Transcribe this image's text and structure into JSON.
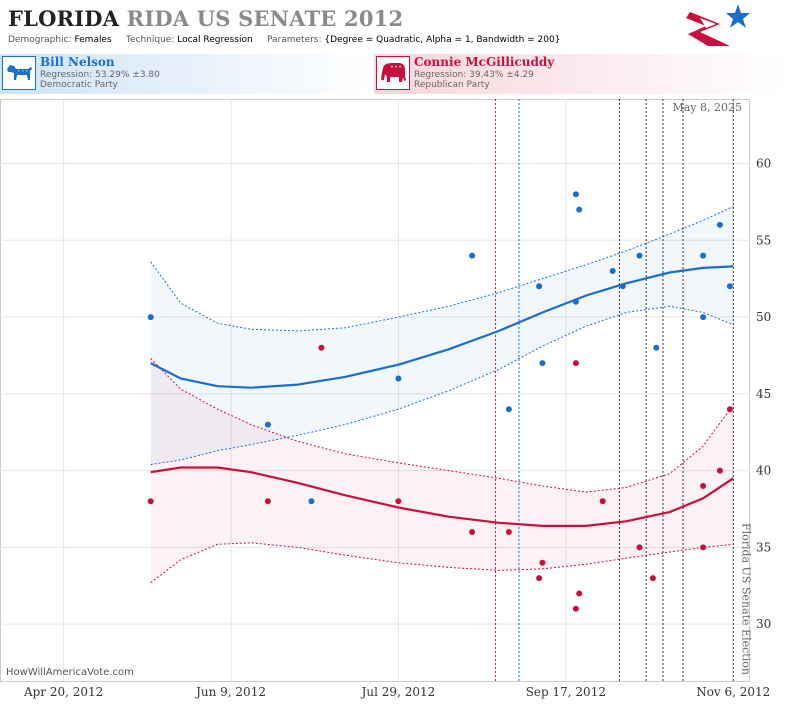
{
  "header": {
    "title_part1": "FLORIDA",
    "title_part2": "RIDA US SENATE 2012",
    "demographic_label": "Demographic:",
    "demographic_value": "Females",
    "technique_label": "Technique:",
    "technique_value": "Local Regression",
    "parameters_label": "Parameters:",
    "parameters_value": "{Degree = Quadratic, Alpha = 1, Bandwidth = 200}",
    "logo_icon": "flag-star-logo-icon"
  },
  "candidates": {
    "dem": {
      "name": "Bill Nelson",
      "regression": "Regression: 53.29% ±3.80",
      "party": "Democratic Party",
      "icon": "donkey-icon",
      "color": "#1a6fcc"
    },
    "rep": {
      "name": "Connie McGillicuddy",
      "regression": "Regression: 39.43% ±4.29",
      "party": "Republican Party",
      "icon": "elephant-icon",
      "color": "#c8103e"
    }
  },
  "chart_data": {
    "type": "scatter",
    "date_label": "May 8, 2025",
    "election_label": "Florida US Senate Election",
    "watermark": "HowWillAmericaVote.com",
    "x_range": [
      "2012-04-01",
      "2012-11-11"
    ],
    "y_range": [
      26.3,
      64.2
    ],
    "x_ticks": [
      {
        "date": "2012-04-20",
        "label": "Apr 20, 2012"
      },
      {
        "date": "2012-06-09",
        "label": "Jun 9, 2012"
      },
      {
        "date": "2012-07-29",
        "label": "Jul 29, 2012"
      },
      {
        "date": "2012-09-17",
        "label": "Sep 17, 2012"
      },
      {
        "date": "2012-11-06",
        "label": "Nov 6, 2012"
      }
    ],
    "y_ticks": [
      30,
      35,
      40,
      45,
      50,
      55,
      60
    ],
    "grid": true,
    "event_lines": [
      {
        "date": "2012-08-27",
        "color": "#c8103e"
      },
      {
        "date": "2012-09-03",
        "color": "#1a6fcc"
      },
      {
        "date": "2012-10-03",
        "color": "#333333"
      },
      {
        "date": "2012-10-11",
        "color": "#333333"
      },
      {
        "date": "2012-10-16",
        "color": "#333333"
      },
      {
        "date": "2012-10-22",
        "color": "#333333"
      },
      {
        "date": "2012-11-06",
        "color": "#333333"
      }
    ],
    "series": [
      {
        "name": "Bill Nelson",
        "color": "#1a6fcc",
        "band_color": "rgba(26,111,204,0.06)",
        "points": [
          [
            "2012-05-16",
            50
          ],
          [
            "2012-06-20",
            43
          ],
          [
            "2012-07-03",
            38
          ],
          [
            "2012-07-29",
            46
          ],
          [
            "2012-08-20",
            54
          ],
          [
            "2012-08-31",
            44
          ],
          [
            "2012-09-09",
            52
          ],
          [
            "2012-09-10",
            47
          ],
          [
            "2012-09-20",
            58
          ],
          [
            "2012-09-21",
            57
          ],
          [
            "2012-09-20",
            51
          ],
          [
            "2012-10-28",
            50
          ],
          [
            "2012-10-01",
            53
          ],
          [
            "2012-10-04",
            52
          ],
          [
            "2012-10-09",
            54
          ],
          [
            "2012-10-14",
            48
          ],
          [
            "2012-10-28",
            54
          ],
          [
            "2012-11-02",
            56
          ],
          [
            "2012-11-05",
            52
          ]
        ],
        "trend": [
          [
            "2012-05-16",
            47.0
          ],
          [
            "2012-05-25",
            46.0
          ],
          [
            "2012-06-05",
            45.5
          ],
          [
            "2012-06-15",
            45.4
          ],
          [
            "2012-06-29",
            45.6
          ],
          [
            "2012-07-13",
            46.1
          ],
          [
            "2012-07-29",
            46.9
          ],
          [
            "2012-08-13",
            47.9
          ],
          [
            "2012-08-28",
            49.1
          ],
          [
            "2012-09-10",
            50.3
          ],
          [
            "2012-09-23",
            51.4
          ],
          [
            "2012-10-05",
            52.2
          ],
          [
            "2012-10-18",
            52.9
          ],
          [
            "2012-10-28",
            53.2
          ],
          [
            "2012-11-06",
            53.3
          ]
        ],
        "upper": [
          [
            "2012-05-16",
            53.6
          ],
          [
            "2012-05-25",
            50.9
          ],
          [
            "2012-06-05",
            49.6
          ],
          [
            "2012-06-15",
            49.2
          ],
          [
            "2012-06-29",
            49.1
          ],
          [
            "2012-07-13",
            49.3
          ],
          [
            "2012-07-29",
            50.0
          ],
          [
            "2012-08-13",
            50.7
          ],
          [
            "2012-08-28",
            51.6
          ],
          [
            "2012-09-10",
            52.5
          ],
          [
            "2012-09-23",
            53.4
          ],
          [
            "2012-10-05",
            54.3
          ],
          [
            "2012-10-18",
            55.4
          ],
          [
            "2012-10-28",
            56.3
          ],
          [
            "2012-11-06",
            57.2
          ]
        ],
        "lower": [
          [
            "2012-05-16",
            40.4
          ],
          [
            "2012-05-25",
            40.7
          ],
          [
            "2012-06-05",
            41.3
          ],
          [
            "2012-06-15",
            41.7
          ],
          [
            "2012-06-29",
            42.3
          ],
          [
            "2012-07-13",
            43.0
          ],
          [
            "2012-07-29",
            44.0
          ],
          [
            "2012-08-13",
            45.2
          ],
          [
            "2012-08-28",
            46.6
          ],
          [
            "2012-09-10",
            48.1
          ],
          [
            "2012-09-23",
            49.4
          ],
          [
            "2012-10-05",
            50.3
          ],
          [
            "2012-10-18",
            50.7
          ],
          [
            "2012-10-28",
            50.3
          ],
          [
            "2012-11-06",
            49.5
          ]
        ]
      },
      {
        "name": "Connie McGillicuddy",
        "color": "#c8103e",
        "band_color": "rgba(200,16,62,0.06)",
        "points": [
          [
            "2012-05-16",
            38
          ],
          [
            "2012-06-20",
            38
          ],
          [
            "2012-07-06",
            48
          ],
          [
            "2012-07-29",
            38
          ],
          [
            "2012-08-20",
            36
          ],
          [
            "2012-08-31",
            36
          ],
          [
            "2012-09-10",
            34
          ],
          [
            "2012-09-09",
            33
          ],
          [
            "2012-09-20",
            47
          ],
          [
            "2012-09-20",
            31
          ],
          [
            "2012-09-21",
            32
          ],
          [
            "2012-09-28",
            38
          ],
          [
            "2012-10-09",
            35
          ],
          [
            "2012-10-13",
            33
          ],
          [
            "2012-10-28",
            35
          ],
          [
            "2012-10-28",
            39
          ],
          [
            "2012-11-02",
            40
          ],
          [
            "2012-11-05",
            44
          ]
        ],
        "trend": [
          [
            "2012-05-16",
            39.9
          ],
          [
            "2012-05-25",
            40.2
          ],
          [
            "2012-06-05",
            40.2
          ],
          [
            "2012-06-15",
            39.9
          ],
          [
            "2012-06-29",
            39.2
          ],
          [
            "2012-07-13",
            38.4
          ],
          [
            "2012-07-29",
            37.6
          ],
          [
            "2012-08-13",
            37.0
          ],
          [
            "2012-08-28",
            36.6
          ],
          [
            "2012-09-10",
            36.4
          ],
          [
            "2012-09-23",
            36.4
          ],
          [
            "2012-10-05",
            36.7
          ],
          [
            "2012-10-18",
            37.3
          ],
          [
            "2012-10-28",
            38.2
          ],
          [
            "2012-11-06",
            39.5
          ]
        ],
        "upper": [
          [
            "2012-05-16",
            47.3
          ],
          [
            "2012-05-25",
            45.3
          ],
          [
            "2012-06-05",
            44.0
          ],
          [
            "2012-06-15",
            43.0
          ],
          [
            "2012-06-29",
            41.9
          ],
          [
            "2012-07-13",
            41.1
          ],
          [
            "2012-07-29",
            40.5
          ],
          [
            "2012-08-13",
            40.0
          ],
          [
            "2012-08-28",
            39.5
          ],
          [
            "2012-09-10",
            39.0
          ],
          [
            "2012-09-23",
            38.6
          ],
          [
            "2012-10-05",
            38.9
          ],
          [
            "2012-10-18",
            39.8
          ],
          [
            "2012-10-28",
            41.6
          ],
          [
            "2012-11-06",
            44.3
          ]
        ],
        "lower": [
          [
            "2012-05-16",
            32.7
          ],
          [
            "2012-05-25",
            34.2
          ],
          [
            "2012-06-05",
            35.2
          ],
          [
            "2012-06-15",
            35.3
          ],
          [
            "2012-06-29",
            35.0
          ],
          [
            "2012-07-13",
            34.5
          ],
          [
            "2012-07-29",
            34.0
          ],
          [
            "2012-08-13",
            33.7
          ],
          [
            "2012-08-28",
            33.5
          ],
          [
            "2012-09-10",
            33.6
          ],
          [
            "2012-09-23",
            33.9
          ],
          [
            "2012-10-05",
            34.3
          ],
          [
            "2012-10-18",
            34.7
          ],
          [
            "2012-10-28",
            35.0
          ],
          [
            "2012-11-06",
            35.2
          ]
        ]
      }
    ]
  }
}
